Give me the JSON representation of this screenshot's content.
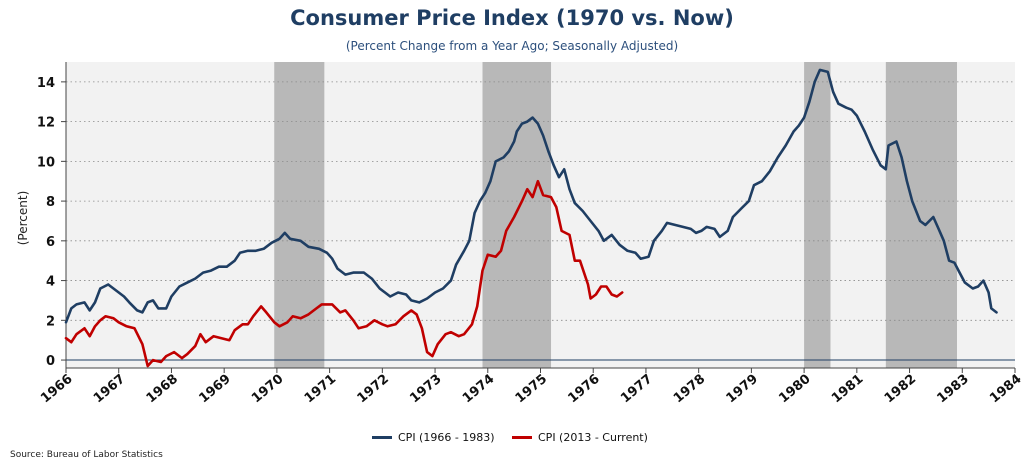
{
  "chart_data": {
    "type": "line",
    "title": "Consumer Price Index (1970 vs. Now)",
    "subtitle": "(Percent Change from a Year Ago; Seasonally Adjusted)",
    "xlabel": "",
    "ylabel": "(Percent)",
    "xlim": [
      1966,
      1984
    ],
    "ylim": [
      -0.4,
      15
    ],
    "x_ticks": [
      "1966",
      "1967",
      "1968",
      "1969",
      "1970",
      "1971",
      "1972",
      "1973",
      "1974",
      "1975",
      "1976",
      "1977",
      "1978",
      "1979",
      "1980",
      "1981",
      "1982",
      "1983",
      "1984"
    ],
    "y_ticks": [
      "0",
      "2",
      "4",
      "6",
      "8",
      "10",
      "12",
      "14"
    ],
    "grid": "horizontal dotted",
    "legend_position": "bottom-center",
    "source": "Source: Bureau of Labor Statistics",
    "recession_bands": [
      [
        1969.95,
        1970.9
      ],
      [
        1973.9,
        1975.2
      ],
      [
        1980.0,
        1980.5
      ],
      [
        1981.55,
        1982.9
      ]
    ],
    "series": [
      {
        "name": "CPI (1966 - 1983)",
        "color": "#1f3e63",
        "points": [
          [
            1966.0,
            1.9
          ],
          [
            1966.1,
            2.6
          ],
          [
            1966.2,
            2.8
          ],
          [
            1966.35,
            2.9
          ],
          [
            1966.45,
            2.5
          ],
          [
            1966.55,
            2.9
          ],
          [
            1966.65,
            3.6
          ],
          [
            1966.8,
            3.8
          ],
          [
            1966.95,
            3.5
          ],
          [
            1967.1,
            3.2
          ],
          [
            1967.2,
            2.9
          ],
          [
            1967.35,
            2.5
          ],
          [
            1967.45,
            2.4
          ],
          [
            1967.55,
            2.9
          ],
          [
            1967.65,
            3.0
          ],
          [
            1967.75,
            2.6
          ],
          [
            1967.9,
            2.6
          ],
          [
            1968.0,
            3.2
          ],
          [
            1968.15,
            3.7
          ],
          [
            1968.3,
            3.9
          ],
          [
            1968.45,
            4.1
          ],
          [
            1968.6,
            4.4
          ],
          [
            1968.75,
            4.5
          ],
          [
            1968.9,
            4.7
          ],
          [
            1969.05,
            4.7
          ],
          [
            1969.2,
            5.0
          ],
          [
            1969.3,
            5.4
          ],
          [
            1969.45,
            5.5
          ],
          [
            1969.6,
            5.5
          ],
          [
            1969.75,
            5.6
          ],
          [
            1969.9,
            5.9
          ],
          [
            1970.05,
            6.1
          ],
          [
            1970.15,
            6.4
          ],
          [
            1970.25,
            6.1
          ],
          [
            1970.45,
            6.0
          ],
          [
            1970.6,
            5.7
          ],
          [
            1970.8,
            5.6
          ],
          [
            1970.95,
            5.4
          ],
          [
            1971.05,
            5.1
          ],
          [
            1971.15,
            4.6
          ],
          [
            1971.3,
            4.3
          ],
          [
            1971.45,
            4.4
          ],
          [
            1971.65,
            4.4
          ],
          [
            1971.8,
            4.1
          ],
          [
            1971.95,
            3.6
          ],
          [
            1972.05,
            3.4
          ],
          [
            1972.15,
            3.2
          ],
          [
            1972.3,
            3.4
          ],
          [
            1972.45,
            3.3
          ],
          [
            1972.55,
            3.0
          ],
          [
            1972.7,
            2.9
          ],
          [
            1972.85,
            3.1
          ],
          [
            1973.0,
            3.4
          ],
          [
            1973.15,
            3.6
          ],
          [
            1973.3,
            4.0
          ],
          [
            1973.4,
            4.8
          ],
          [
            1973.55,
            5.5
          ],
          [
            1973.65,
            6.0
          ],
          [
            1973.75,
            7.4
          ],
          [
            1973.85,
            8.0
          ],
          [
            1973.95,
            8.4
          ],
          [
            1974.05,
            9.0
          ],
          [
            1974.15,
            10.0
          ],
          [
            1974.3,
            10.2
          ],
          [
            1974.4,
            10.5
          ],
          [
            1974.5,
            11.0
          ],
          [
            1974.55,
            11.5
          ],
          [
            1974.65,
            11.9
          ],
          [
            1974.75,
            12.0
          ],
          [
            1974.85,
            12.2
          ],
          [
            1974.95,
            11.9
          ],
          [
            1975.05,
            11.3
          ],
          [
            1975.15,
            10.5
          ],
          [
            1975.25,
            9.8
          ],
          [
            1975.35,
            9.2
          ],
          [
            1975.45,
            9.6
          ],
          [
            1975.55,
            8.6
          ],
          [
            1975.65,
            7.9
          ],
          [
            1975.8,
            7.5
          ],
          [
            1975.95,
            7.0
          ],
          [
            1976.1,
            6.5
          ],
          [
            1976.2,
            6.0
          ],
          [
            1976.35,
            6.3
          ],
          [
            1976.5,
            5.8
          ],
          [
            1976.65,
            5.5
          ],
          [
            1976.8,
            5.4
          ],
          [
            1976.9,
            5.1
          ],
          [
            1977.05,
            5.2
          ],
          [
            1977.15,
            6.0
          ],
          [
            1977.3,
            6.5
          ],
          [
            1977.4,
            6.9
          ],
          [
            1977.55,
            6.8
          ],
          [
            1977.7,
            6.7
          ],
          [
            1977.85,
            6.6
          ],
          [
            1977.95,
            6.4
          ],
          [
            1978.05,
            6.5
          ],
          [
            1978.15,
            6.7
          ],
          [
            1978.3,
            6.6
          ],
          [
            1978.4,
            6.2
          ],
          [
            1978.55,
            6.5
          ],
          [
            1978.65,
            7.2
          ],
          [
            1978.8,
            7.6
          ],
          [
            1978.95,
            8.0
          ],
          [
            1979.05,
            8.8
          ],
          [
            1979.2,
            9.0
          ],
          [
            1979.35,
            9.5
          ],
          [
            1979.5,
            10.2
          ],
          [
            1979.65,
            10.8
          ],
          [
            1979.8,
            11.5
          ],
          [
            1979.9,
            11.8
          ],
          [
            1980.0,
            12.2
          ],
          [
            1980.1,
            13.0
          ],
          [
            1980.2,
            14.0
          ],
          [
            1980.3,
            14.6
          ],
          [
            1980.45,
            14.5
          ],
          [
            1980.55,
            13.5
          ],
          [
            1980.65,
            12.9
          ],
          [
            1980.8,
            12.7
          ],
          [
            1980.9,
            12.6
          ],
          [
            1981.0,
            12.3
          ],
          [
            1981.15,
            11.5
          ],
          [
            1981.3,
            10.6
          ],
          [
            1981.45,
            9.8
          ],
          [
            1981.55,
            9.6
          ],
          [
            1981.6,
            10.8
          ],
          [
            1981.75,
            11.0
          ],
          [
            1981.85,
            10.2
          ],
          [
            1981.95,
            9.0
          ],
          [
            1982.05,
            8.0
          ],
          [
            1982.2,
            7.0
          ],
          [
            1982.3,
            6.8
          ],
          [
            1982.45,
            7.2
          ],
          [
            1982.55,
            6.6
          ],
          [
            1982.65,
            6.0
          ],
          [
            1982.75,
            5.0
          ],
          [
            1982.85,
            4.9
          ],
          [
            1982.95,
            4.4
          ],
          [
            1983.05,
            3.9
          ],
          [
            1983.2,
            3.6
          ],
          [
            1983.3,
            3.7
          ],
          [
            1983.4,
            4.0
          ],
          [
            1983.5,
            3.4
          ],
          [
            1983.55,
            2.6
          ],
          [
            1983.65,
            2.4
          ]
        ]
      },
      {
        "name": "CPI (2013 - Current)",
        "color": "#c00000",
        "points": [
          [
            1966.0,
            1.1
          ],
          [
            1966.1,
            0.9
          ],
          [
            1966.2,
            1.3
          ],
          [
            1966.35,
            1.6
          ],
          [
            1966.45,
            1.2
          ],
          [
            1966.55,
            1.7
          ],
          [
            1966.65,
            2.0
          ],
          [
            1966.75,
            2.2
          ],
          [
            1966.9,
            2.1
          ],
          [
            1967.0,
            1.9
          ],
          [
            1967.15,
            1.7
          ],
          [
            1967.3,
            1.6
          ],
          [
            1967.45,
            0.8
          ],
          [
            1967.55,
            -0.3
          ],
          [
            1967.65,
            0.0
          ],
          [
            1967.8,
            -0.1
          ],
          [
            1967.9,
            0.2
          ],
          [
            1968.05,
            0.4
          ],
          [
            1968.2,
            0.1
          ],
          [
            1968.3,
            0.3
          ],
          [
            1968.45,
            0.7
          ],
          [
            1968.55,
            1.3
          ],
          [
            1968.65,
            0.9
          ],
          [
            1968.8,
            1.2
          ],
          [
            1968.95,
            1.1
          ],
          [
            1969.1,
            1.0
          ],
          [
            1969.2,
            1.5
          ],
          [
            1969.35,
            1.8
          ],
          [
            1969.45,
            1.8
          ],
          [
            1969.55,
            2.2
          ],
          [
            1969.7,
            2.7
          ],
          [
            1969.8,
            2.4
          ],
          [
            1969.95,
            1.9
          ],
          [
            1970.05,
            1.7
          ],
          [
            1970.2,
            1.9
          ],
          [
            1970.3,
            2.2
          ],
          [
            1970.45,
            2.1
          ],
          [
            1970.6,
            2.3
          ],
          [
            1970.75,
            2.6
          ],
          [
            1970.85,
            2.8
          ],
          [
            1971.05,
            2.8
          ],
          [
            1971.2,
            2.4
          ],
          [
            1971.3,
            2.5
          ],
          [
            1971.45,
            2.0
          ],
          [
            1971.55,
            1.6
          ],
          [
            1971.7,
            1.7
          ],
          [
            1971.85,
            2.0
          ],
          [
            1972.0,
            1.8
          ],
          [
            1972.1,
            1.7
          ],
          [
            1972.25,
            1.8
          ],
          [
            1972.4,
            2.2
          ],
          [
            1972.55,
            2.5
          ],
          [
            1972.65,
            2.3
          ],
          [
            1972.75,
            1.6
          ],
          [
            1972.85,
            0.4
          ],
          [
            1972.95,
            0.2
          ],
          [
            1973.05,
            0.8
          ],
          [
            1973.2,
            1.3
          ],
          [
            1973.3,
            1.4
          ],
          [
            1973.45,
            1.2
          ],
          [
            1973.55,
            1.3
          ],
          [
            1973.7,
            1.8
          ],
          [
            1973.8,
            2.7
          ],
          [
            1973.9,
            4.5
          ],
          [
            1974.0,
            5.3
          ],
          [
            1974.15,
            5.2
          ],
          [
            1974.25,
            5.5
          ],
          [
            1974.35,
            6.5
          ],
          [
            1974.5,
            7.2
          ],
          [
            1974.65,
            8.0
          ],
          [
            1974.75,
            8.6
          ],
          [
            1974.85,
            8.2
          ],
          [
            1974.95,
            9.0
          ],
          [
            1975.05,
            8.3
          ],
          [
            1975.2,
            8.2
          ],
          [
            1975.3,
            7.7
          ],
          [
            1975.4,
            6.5
          ],
          [
            1975.55,
            6.3
          ],
          [
            1975.65,
            5.0
          ],
          [
            1975.75,
            5.0
          ],
          [
            1975.9,
            3.8
          ],
          [
            1975.95,
            3.1
          ],
          [
            1976.05,
            3.3
          ],
          [
            1976.15,
            3.7
          ],
          [
            1976.25,
            3.7
          ],
          [
            1976.35,
            3.3
          ],
          [
            1976.45,
            3.2
          ],
          [
            1976.55,
            3.4
          ]
        ]
      }
    ]
  }
}
